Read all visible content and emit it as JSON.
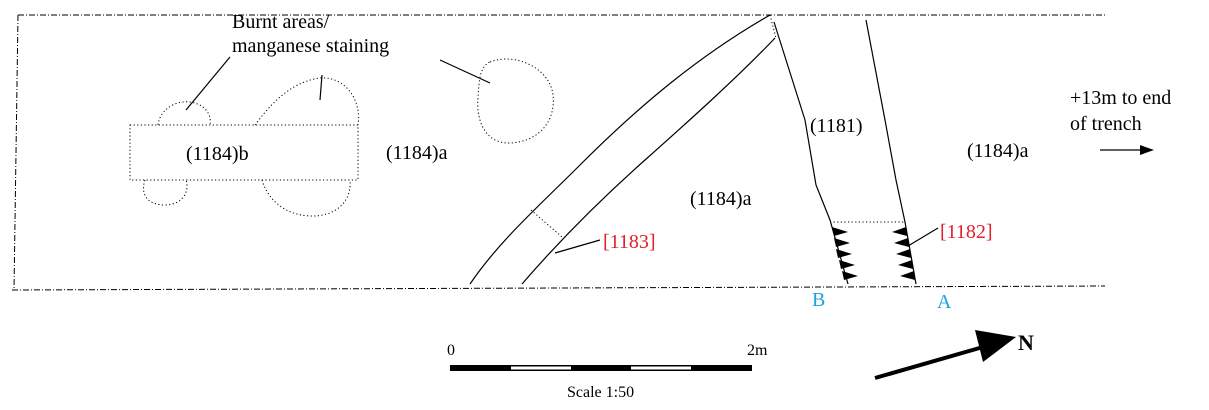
{
  "labels": {
    "burnt_areas": [
      "Burnt areas/",
      "manganese staining"
    ],
    "context_1184b": "(1184)b",
    "context_1184a_left": "(1184)a",
    "context_1184a_mid": "(1184)a",
    "context_1184a_right": "(1184)a",
    "context_1181": "(1181)",
    "cut_1183": "[1183]",
    "cut_1182": "[1182]",
    "section_b": "B",
    "section_a": "A",
    "extension_note": [
      "+13m to end",
      "of trench"
    ]
  },
  "scale": {
    "start_label": "0",
    "end_label": "2m",
    "caption": "Scale 1:50"
  },
  "north": {
    "label": "N"
  },
  "colors": {
    "ink": "#000000",
    "cut_label": "#e0202a",
    "section_label": "#1aa3e0"
  }
}
